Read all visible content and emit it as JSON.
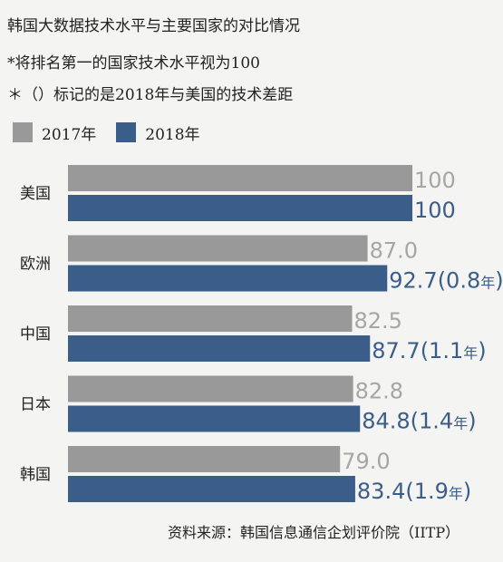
{
  "notes": [
    "韩国大数据技术水平与主要国家的对比情况",
    "*将排名第一的国家技术水平视为100",
    "＊（）标记的是2018年与美国的技术差距"
  ],
  "colors": {
    "y2017": "#999999",
    "y2018": "#3a5d89",
    "label2017": "#a6a6a6",
    "label2018": "#3a5d89"
  },
  "source": "资料来源：韩国信息通信企划评价院（IITP）",
  "chart_data": {
    "type": "bar",
    "orientation": "horizontal",
    "categories": [
      "美国",
      "欧洲",
      "中国",
      "日本",
      "韩国"
    ],
    "series": [
      {
        "name": "2017年",
        "values": [
          100,
          87.0,
          82.5,
          82.8,
          79.0
        ],
        "labels": [
          "100",
          "87.0",
          "82.5",
          "82.8",
          "79.0"
        ]
      },
      {
        "name": "2018年",
        "values": [
          100,
          92.7,
          87.7,
          84.8,
          83.4
        ],
        "labels": [
          "100",
          "92.7",
          "87.7",
          "84.8",
          "83.4"
        ]
      }
    ],
    "gap_2018_years": [
      "",
      "(0.8",
      "(1.1",
      "(1.4",
      "(1.9"
    ],
    "gap_unit": "年",
    "gap_close": ")",
    "legend_position": "top-left",
    "xlim": [
      0,
      100
    ]
  }
}
